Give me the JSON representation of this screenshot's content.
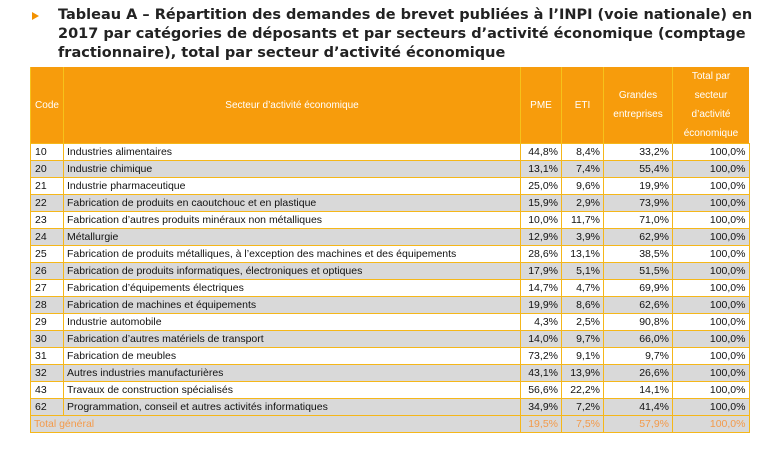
{
  "title": "Tableau A – Répartition des demandes de brevet publiées à l’INPI (voie nationale) en 2017 par catégories de déposants et par secteurs d’activité économique (comptage fractionnaire), total par secteur d’activité économique",
  "headers": [
    "Code",
    "Secteur d’activité économique",
    "PME",
    "ETI",
    "Grandes entreprises",
    "Total par secteur d’activité économique"
  ],
  "rows": [
    [
      "10",
      "Industries alimentaires",
      "44,8%",
      "8,4%",
      "33,2%",
      "100,0%"
    ],
    [
      "20",
      "Industrie chimique",
      "13,1%",
      "7,4%",
      "55,4%",
      "100,0%"
    ],
    [
      "21",
      "Industrie pharmaceutique",
      "25,0%",
      "9,6%",
      "19,9%",
      "100,0%"
    ],
    [
      "22",
      "Fabrication de produits en caoutchouc et en plastique",
      "15,9%",
      "2,9%",
      "73,9%",
      "100,0%"
    ],
    [
      "23",
      "Fabrication d’autres produits minéraux non métalliques",
      "10,0%",
      "11,7%",
      "71,0%",
      "100,0%"
    ],
    [
      "24",
      "Métallurgie",
      "12,9%",
      "3,9%",
      "62,9%",
      "100,0%"
    ],
    [
      "25",
      "Fabrication de produits métalliques, à l’exception des machines et des équipements",
      "28,6%",
      "13,1%",
      "38,5%",
      "100,0%"
    ],
    [
      "26",
      "Fabrication de produits informatiques, électroniques et optiques",
      "17,9%",
      "5,1%",
      "51,5%",
      "100,0%"
    ],
    [
      "27",
      "Fabrication d’équipements électriques",
      "14,7%",
      "4,7%",
      "69,9%",
      "100,0%"
    ],
    [
      "28",
      "Fabrication de machines et équipements",
      "19,9%",
      "8,6%",
      "62,6%",
      "100,0%"
    ],
    [
      "29",
      "Industrie automobile",
      "4,3%",
      "2,5%",
      "90,8%",
      "100,0%"
    ],
    [
      "30",
      "Fabrication d’autres matériels de transport",
      "14,0%",
      "9,7%",
      "66,0%",
      "100,0%"
    ],
    [
      "31",
      "Fabrication de meubles",
      "73,2%",
      "9,1%",
      "9,7%",
      "100,0%"
    ],
    [
      "32",
      "Autres industries manufacturières",
      "43,1%",
      "13,9%",
      "26,6%",
      "100,0%"
    ],
    [
      "43",
      "Travaux de construction spécialisés",
      "56,6%",
      "22,2%",
      "14,1%",
      "100,0%"
    ],
    [
      "62",
      "Programmation, conseil et autres activités informatiques",
      "34,9%",
      "7,2%",
      "41,4%",
      "100,0%"
    ]
  ],
  "total": [
    "Total général",
    "19,5%",
    "7,5%",
    "57,9%",
    "100,0%"
  ]
}
